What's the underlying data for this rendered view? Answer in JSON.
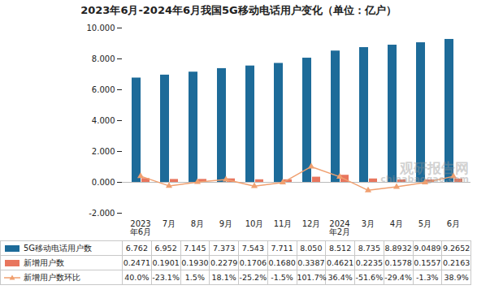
{
  "chart_data": {
    "type": "bar",
    "title": "2023年6月-2024年6月我国5G移动电话用户变化（单位：亿户）",
    "categories": [
      "2023年6月",
      "7月",
      "8月",
      "9月",
      "10月",
      "11月",
      "12月",
      "2024年2月",
      "3月",
      "4月",
      "5月",
      "6月"
    ],
    "series": [
      {
        "name": "5G移动电话用户数",
        "type": "bar",
        "color": "#1d6b99",
        "values": [
          6.762,
          6.952,
          7.145,
          7.373,
          7.543,
          7.711,
          8.05,
          8.512,
          8.735,
          8.8932,
          9.0489,
          9.2652
        ],
        "value_labels": [
          "6.762",
          "6.952",
          "7.145",
          "7.373",
          "7.543",
          "7.711",
          "8.050",
          "8.512",
          "8.735",
          "8.8932",
          "9.0489",
          "9.2652"
        ]
      },
      {
        "name": "新增用户数",
        "type": "bar",
        "color": "#e8765e",
        "values": [
          0.2471,
          0.1901,
          0.193,
          0.2279,
          0.1706,
          0.168,
          0.3387,
          0.4621,
          0.2235,
          0.1578,
          0.1557,
          0.2163
        ],
        "value_labels": [
          "0.2471",
          "0.1901",
          "0.1930",
          "0.2279",
          "0.1706",
          "0.1680",
          "0.3387",
          "0.4621",
          "0.2235",
          "0.1578",
          "0.1557",
          "0.2163"
        ]
      },
      {
        "name": "新增用户数环比",
        "type": "line",
        "color": "#f0a070",
        "marker": "triangle",
        "values": [
          0.4,
          -0.231,
          0.015,
          0.181,
          -0.252,
          -0.015,
          1.017,
          0.364,
          -0.516,
          -0.294,
          -0.013,
          0.389
        ],
        "value_labels": [
          "40.0%",
          "-23.1%",
          "1.5%",
          "18.1%",
          "-25.2%",
          "-1.5%",
          "101.7%",
          "36.4%",
          "-51.6%",
          "-29.4%",
          "-1.3%",
          "38.9%"
        ]
      }
    ],
    "ylim": [
      -2,
      10
    ],
    "yticks": [
      {
        "value": -2,
        "label": "-2.000"
      },
      {
        "value": 0,
        "label": "0.000"
      },
      {
        "value": 2,
        "label": "2.000"
      },
      {
        "value": 4,
        "label": "4.000"
      },
      {
        "value": 6,
        "label": "6.000"
      },
      {
        "value": 8,
        "label": "8.000"
      },
      {
        "value": 10,
        "label": "10.000"
      }
    ],
    "grid": false,
    "annotations": [
      "观研报告网",
      "chinabaogao.com"
    ]
  }
}
